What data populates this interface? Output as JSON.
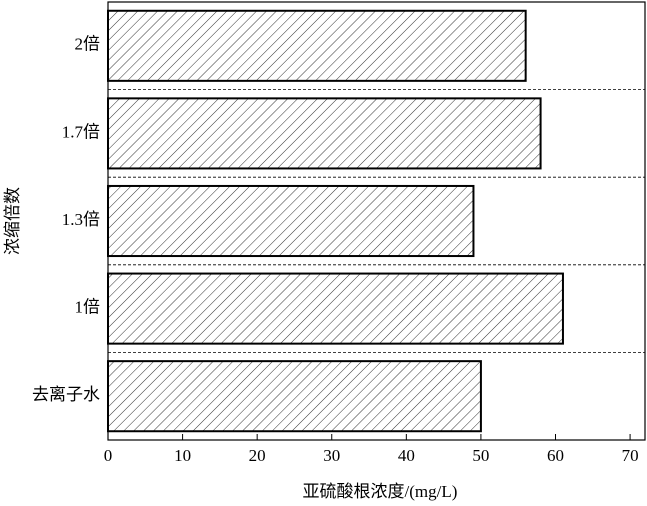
{
  "chart_data": {
    "type": "barh",
    "categories": [
      "2倍",
      "1.7倍",
      "1.3倍",
      "1倍",
      "去离子水"
    ],
    "values": [
      56,
      58,
      49,
      61,
      50
    ],
    "color": "#333333",
    "xlabel": "亚硫酸根浓度/(mg/L)",
    "ylabel": "浓缩倍数",
    "xlim": [
      0,
      72
    ],
    "xticks": [
      0,
      10,
      20,
      30,
      40,
      50,
      60,
      70
    ],
    "hatch": true,
    "separators": true
  }
}
